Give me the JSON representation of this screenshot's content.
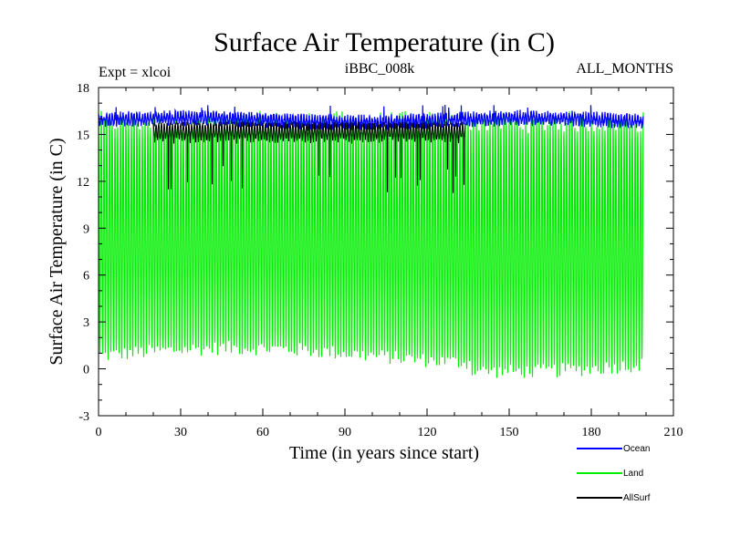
{
  "chart_data": {
    "type": "line",
    "title": "Surface Air Temperature (in C)",
    "subtitle_left": "Expt = xlcoi",
    "subtitle_center": "iBBC_008k",
    "subtitle_right": "ALL_MONTHS",
    "xlabel": "Time (in years since start)",
    "ylabel": "Surface Air Temperature (in C)",
    "xlim": [
      0,
      210
    ],
    "ylim": [
      -3,
      18
    ],
    "xticks": [
      0,
      30,
      60,
      90,
      120,
      150,
      180,
      210
    ],
    "yticks": [
      -3,
      0,
      3,
      6,
      9,
      12,
      15,
      18
    ],
    "x_range_description": "monthly values, years 0-199",
    "series": [
      {
        "name": "Ocean",
        "color": "#0000ff",
        "x_start": 0,
        "x_end": 199,
        "mean": 15.9,
        "seasonal_min": 15.3,
        "seasonal_max": 16.5,
        "spike_max": 16.9
      },
      {
        "name": "Land",
        "color": "#00ee00",
        "x_start": 0,
        "x_end": 199,
        "seasonal_min_range": [
          -0.8,
          1.8
        ],
        "seasonal_max_range": [
          14.5,
          16.5
        ]
      },
      {
        "name": "AllSurf",
        "color": "#000000",
        "x_start": 20,
        "x_end": 134,
        "seasonal_min": 14.5,
        "seasonal_max": 15.7,
        "dip_min": 11.2
      }
    ]
  }
}
